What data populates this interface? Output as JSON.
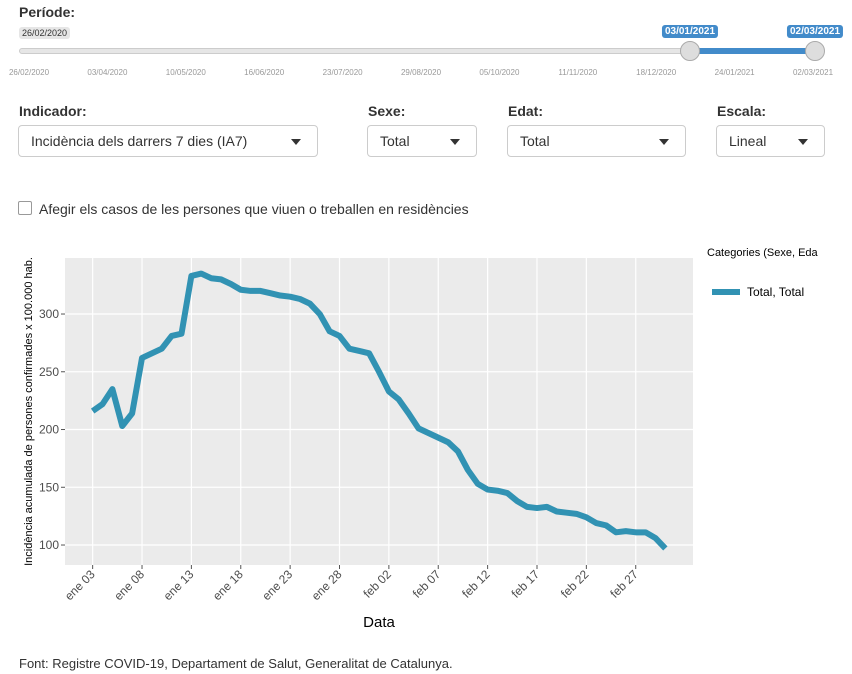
{
  "slider": {
    "label": "Període:",
    "min_label": "26/02/2020",
    "from": "03/01/2021",
    "to": "02/03/2021",
    "ticks": [
      "26/02/2020",
      "03/04/2020",
      "10/05/2020",
      "16/06/2020",
      "23/07/2020",
      "29/08/2020",
      "05/10/2020",
      "11/11/2020",
      "18/12/2020",
      "24/01/2021",
      "02/03/2021"
    ]
  },
  "controls": [
    {
      "label": "Indicador:",
      "value": "Incidència dels darrers 7 dies (IA7)"
    },
    {
      "label": "Sexe:",
      "value": "Total"
    },
    {
      "label": "Edat:",
      "value": "Total"
    },
    {
      "label": "Escala:",
      "value": "Lineal"
    }
  ],
  "checkbox": "Afegir els casos de les persones que viuen o treballen en residències",
  "chart_data": {
    "type": "line",
    "xlabel": "Data",
    "ylabel": "Incidència acumulada de persones confirmades x 100.000 hab.",
    "legend_title": "Categories (Sexe, Eda",
    "x": [
      3,
      4,
      5,
      6,
      7,
      8,
      9,
      10,
      11,
      12,
      13,
      14,
      15,
      16,
      17,
      18,
      19,
      20,
      21,
      22,
      23,
      24,
      25,
      26,
      27,
      28,
      29,
      30,
      31,
      32,
      33,
      34,
      35,
      36,
      37,
      38,
      39,
      40,
      41,
      42,
      43,
      44,
      45,
      46,
      47,
      48,
      49,
      50,
      51,
      52,
      53,
      54,
      55,
      56,
      57,
      58,
      59,
      60,
      61
    ],
    "series": [
      {
        "name": "Total, Total",
        "color": "#3192b3",
        "values": [
          216,
          222,
          235,
          203,
          214,
          262,
          266,
          270,
          281,
          283,
          333,
          335,
          331,
          330,
          326,
          321,
          320,
          320,
          318,
          316,
          315,
          313,
          309,
          300,
          285,
          281,
          270,
          268,
          266,
          250,
          233,
          226,
          214,
          201,
          197,
          193,
          189,
          181,
          165,
          153,
          148,
          147,
          145,
          138,
          133,
          132,
          133,
          129,
          128,
          127,
          124,
          119,
          117,
          111,
          112,
          111,
          111,
          106,
          97
        ]
      }
    ],
    "xlim": [
      0.2,
      63.8
    ],
    "xticks": [
      {
        "value": 3,
        "label": "ene 03"
      },
      {
        "value": 8,
        "label": "ene 08"
      },
      {
        "value": 13,
        "label": "ene 13"
      },
      {
        "value": 18,
        "label": "ene 18"
      },
      {
        "value": 23,
        "label": "ene 23"
      },
      {
        "value": 28,
        "label": "ene 28"
      },
      {
        "value": 33,
        "label": "feb 02"
      },
      {
        "value": 38,
        "label": "feb 07"
      },
      {
        "value": 43,
        "label": "feb 12"
      },
      {
        "value": 48,
        "label": "feb 17"
      },
      {
        "value": 53,
        "label": "feb 22"
      },
      {
        "value": 58,
        "label": "feb 27"
      }
    ],
    "ylim": [
      82.7,
      348.5
    ],
    "yticks": [
      100,
      150,
      200,
      250,
      300
    ],
    "grid": true
  },
  "footer": "Font: Registre COVID-19, Departament de Salut, Generalitat de Catalunya."
}
